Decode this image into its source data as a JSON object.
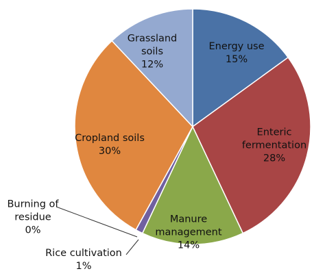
{
  "chart_data": {
    "type": "pie",
    "categories": [
      "Energy use",
      "Enteric fermentation",
      "Manure management",
      "Rice cultivation",
      "Burning of residue",
      "Cropland soils",
      "Grassland soils"
    ],
    "values": [
      15,
      28,
      14,
      1,
      0,
      30,
      12
    ],
    "value_labels": [
      "15%",
      "28%",
      "14%",
      "1%",
      "0%",
      "30%",
      "12%"
    ],
    "colors": [
      "#4a72a6",
      "#a84545",
      "#8aa84a",
      "#7060a0",
      "#3d9bb3",
      "#e0873f",
      "#94a9d0"
    ]
  }
}
